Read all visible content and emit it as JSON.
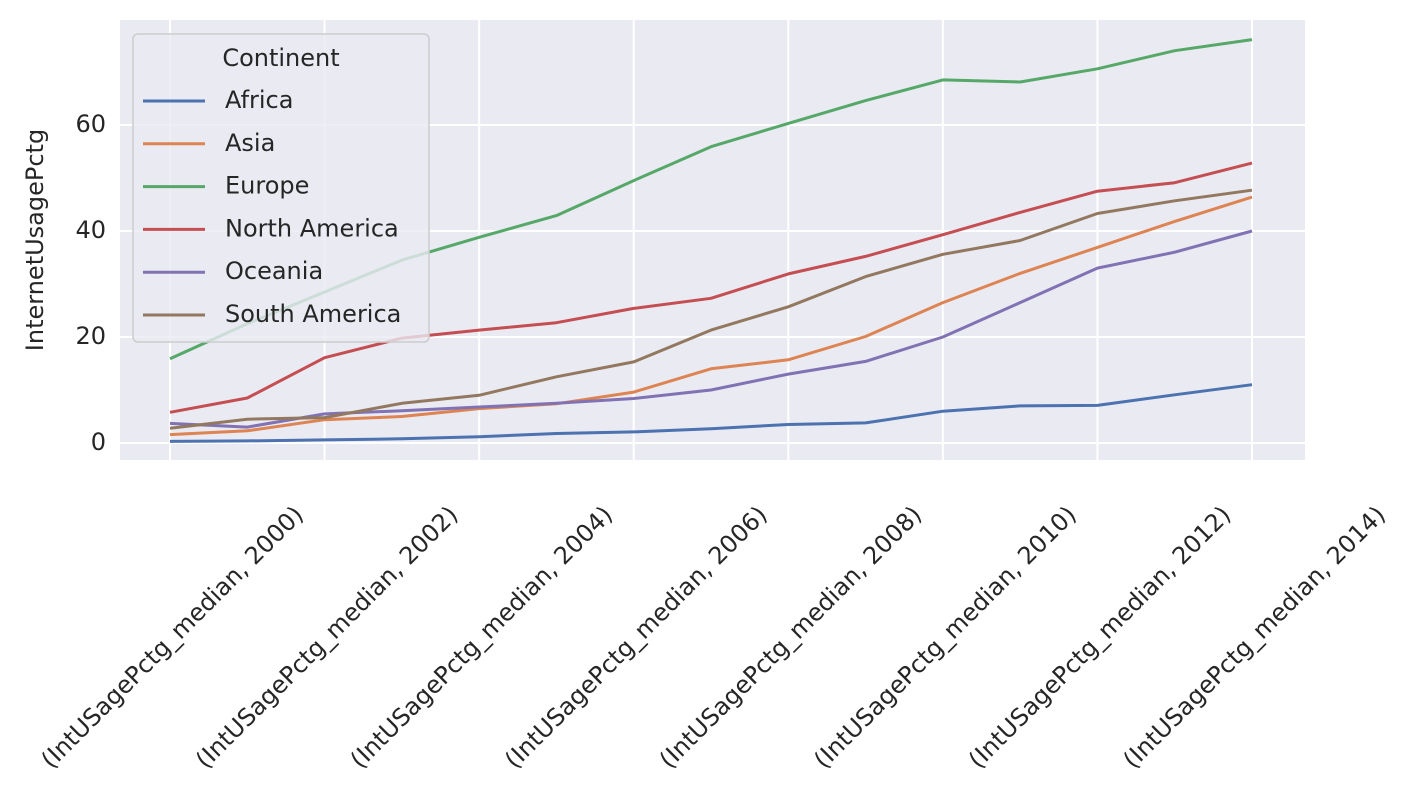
{
  "chart_data": {
    "type": "line",
    "y_label": "InternetUsagePctg",
    "legend_title": "Continent",
    "legend": "upper left",
    "grid": true,
    "categories": [
      "(IntUSagePctg_median, 2000)",
      null,
      "(IntUSagePctg_median, 2002)",
      null,
      "(IntUSagePctg_median, 2004)",
      null,
      "(IntUSagePctg_median, 2006)",
      null,
      "(IntUSagePctg_median, 2008)",
      null,
      "(IntUSagePctg_median, 2010)",
      null,
      "(IntUSagePctg_median, 2012)",
      null,
      "(IntUSagePctg_median, 2014)"
    ],
    "ylim": [
      -3.2,
      79.8
    ],
    "yticks": [
      0,
      20,
      40,
      60
    ],
    "series": [
      {
        "name": "Africa",
        "color": "#4c72b0",
        "values": [
          0.3,
          0.4,
          0.6,
          0.8,
          1.2,
          1.8,
          2.1,
          2.7,
          3.5,
          3.8,
          6,
          7,
          7.1,
          9.1,
          11
        ]
      },
      {
        "name": "Asia",
        "color": "#dd8452",
        "values": [
          1.6,
          2.3,
          4.4,
          5,
          6.5,
          7.4,
          9.6,
          14,
          15.7,
          20.1,
          26.5,
          32,
          36.9,
          41.8,
          46.4
        ]
      },
      {
        "name": "Europe",
        "color": "#55a868",
        "values": [
          15.9,
          22.5,
          28.5,
          34.5,
          38.8,
          42.9,
          49.5,
          55.9,
          60.3,
          64.6,
          68.5,
          68.1,
          70.6,
          74,
          76.1
        ]
      },
      {
        "name": "North America",
        "color": "#c44e52",
        "values": [
          5.8,
          8.5,
          16.1,
          19.8,
          21.3,
          22.7,
          25.4,
          27.3,
          31.9,
          35.2,
          39.3,
          43.5,
          47.5,
          49.1,
          52.8
        ]
      },
      {
        "name": "Oceania",
        "color": "#8172b3",
        "values": [
          3.7,
          3,
          5.5,
          6.1,
          6.8,
          7.5,
          8.4,
          10,
          13,
          15.4,
          20,
          26.5,
          33,
          36,
          40
        ]
      },
      {
        "name": "South America",
        "color": "#937860",
        "values": [
          2.8,
          4.5,
          4.8,
          7.5,
          9,
          12.5,
          15.3,
          21.3,
          25.7,
          31.4,
          35.6,
          38.2,
          43.3,
          45.7,
          47.7
        ]
      }
    ]
  }
}
